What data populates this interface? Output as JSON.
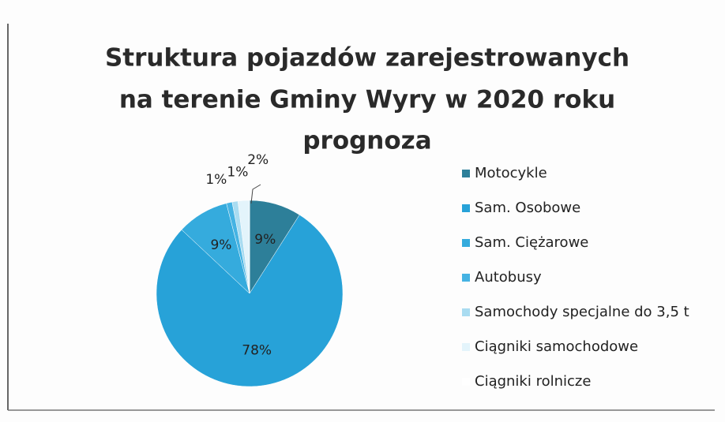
{
  "chart_data": {
    "type": "pie",
    "title": [
      "Struktura pojazdów zarejestrowanych",
      "na terenie Gminy Wyry w 2020 roku",
      "prognoza"
    ],
    "categories": [
      "Motocykle",
      "Sam. Osobowe",
      "Sam. Ciężarowe",
      "Autobusy",
      "Samochody specjalne do 3,5 t",
      "Ciągniki samochodowe",
      "Ciągniki rolnicze"
    ],
    "values": [
      9,
      78,
      9,
      1,
      1,
      2,
      0
    ],
    "value_labels": [
      "9%",
      "78%",
      "9%",
      "1%",
      "1%",
      "2%",
      null
    ],
    "colors": [
      "#2d7f99",
      "#27a2d8",
      "#35abdd",
      "#45b3e3",
      "#a9dcf1",
      "#e3f4fb",
      "#ffffff"
    ],
    "legend": "right"
  }
}
